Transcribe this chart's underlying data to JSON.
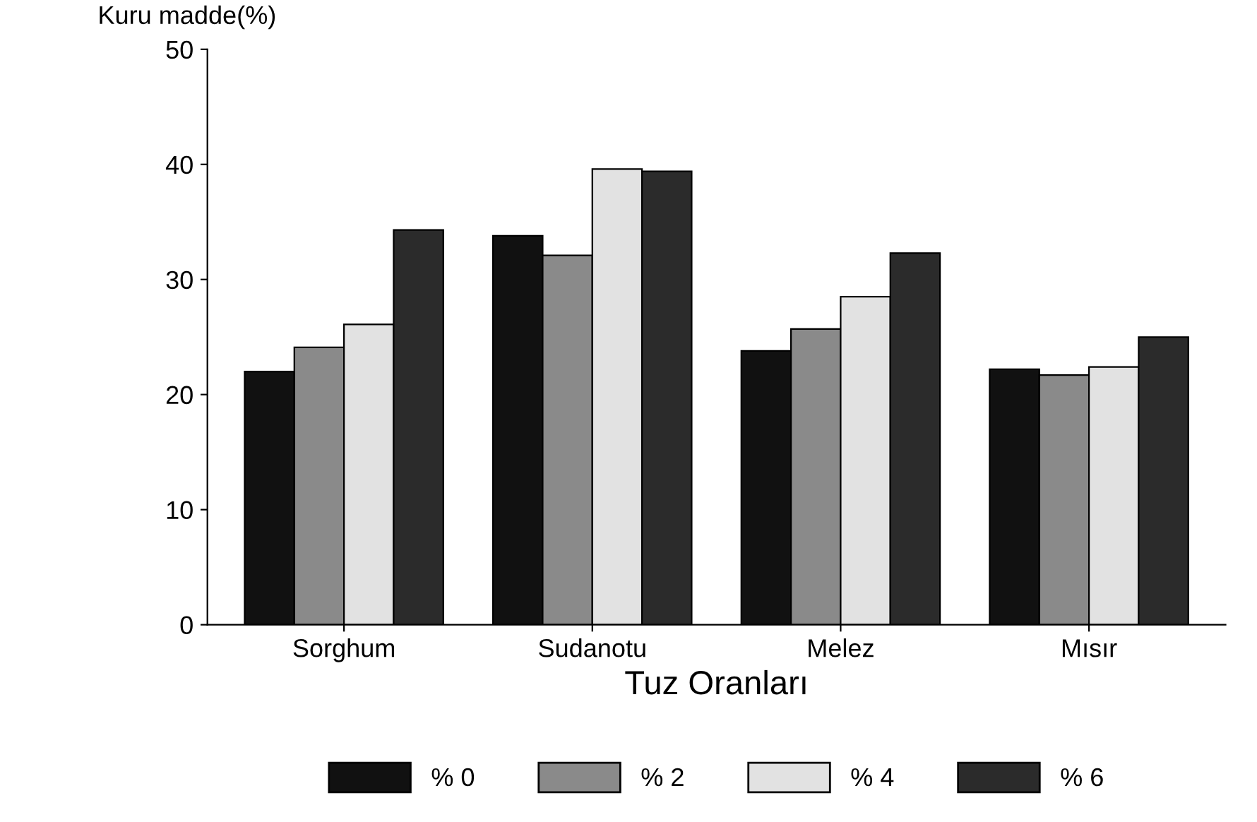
{
  "chart_data": {
    "type": "bar",
    "xlabel": "Tuz Oranları",
    "ylabel": "Kuru madde(%)",
    "categories": [
      "Sorghum",
      "Sudanotu",
      "Melez",
      "Mısır"
    ],
    "series": [
      {
        "name": "% 0",
        "color": "#111111",
        "values": [
          22.0,
          33.8,
          23.8,
          22.2
        ]
      },
      {
        "name": "% 2",
        "color": "#8a8a8a",
        "values": [
          24.1,
          32.1,
          25.7,
          21.7
        ]
      },
      {
        "name": "% 4",
        "color": "#e2e2e2",
        "values": [
          26.1,
          39.6,
          28.5,
          22.4
        ]
      },
      {
        "name": "% 6",
        "color": "#2b2b2b",
        "values": [
          34.3,
          39.4,
          32.3,
          25.0
        ]
      }
    ],
    "ylim": [
      0,
      50
    ],
    "yticks": [
      0,
      10,
      20,
      30,
      40,
      50
    ],
    "grid": false,
    "legend": "bottom"
  }
}
